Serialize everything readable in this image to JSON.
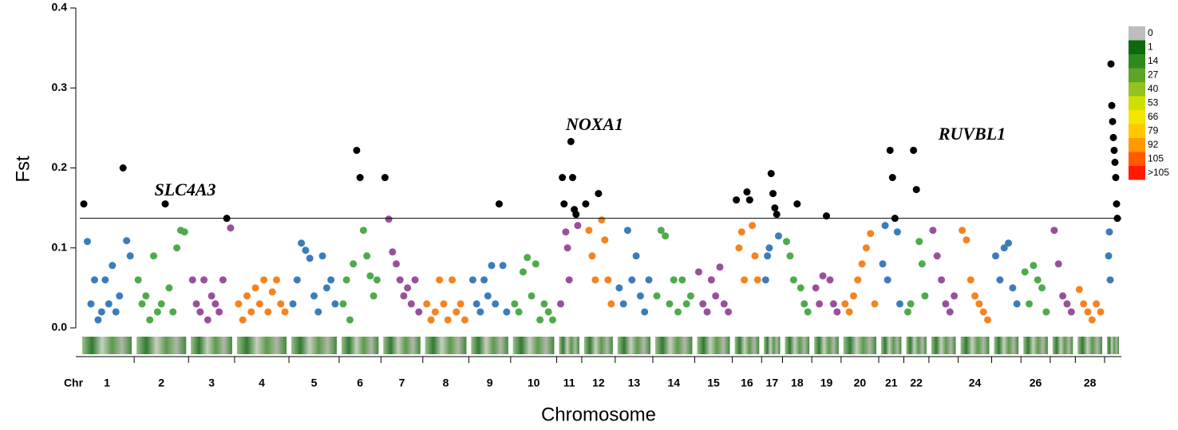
{
  "chart_data": {
    "type": "manhattan",
    "ylabel": "Fst",
    "xlabel": "Chromosome",
    "x_prefix_label": "Chr",
    "ylim": [
      0,
      0.4
    ],
    "yticks": [
      {
        "value": 0,
        "label": "0.0"
      },
      {
        "value": 0.1,
        "label": "0.1"
      },
      {
        "value": 0.2,
        "label": "0.2"
      },
      {
        "value": 0.3,
        "label": "0.3"
      },
      {
        "value": 0.4,
        "label": "0.4"
      }
    ],
    "threshold": 0.137,
    "threshold_color": "#000000",
    "colors": [
      "#3b7dbb",
      "#4dab4a",
      "#9a4f9d",
      "#f5831f"
    ],
    "annotations": [
      "SLC4A3",
      "NOXA1",
      "RUVBL1"
    ],
    "chromosomes": [
      {
        "label": "1",
        "values": [
          0.155,
          0.108,
          0.03,
          0.06,
          0.01,
          0.02,
          0.06,
          0.03,
          0.078,
          0.02,
          0.04,
          0.2,
          0.109,
          0.09
        ]
      },
      {
        "label": "2",
        "values": [
          0.06,
          0.03,
          0.04,
          0.01,
          0.09,
          0.02,
          0.03,
          0.155,
          0.05,
          0.02,
          0.1,
          0.122,
          0.12
        ]
      },
      {
        "label": "3",
        "values": [
          0.06,
          0.03,
          0.02,
          0.06,
          0.01,
          0.04,
          0.03,
          0.02,
          0.06,
          0.137,
          0.125
        ]
      },
      {
        "label": "4",
        "values": [
          0.03,
          0.01,
          0.04,
          0.02,
          0.05,
          0.03,
          0.06,
          0.02,
          0.045,
          0.06,
          0.03,
          0.02
        ]
      },
      {
        "label": "5",
        "values": [
          0.03,
          0.06,
          0.106,
          0.097,
          0.087,
          0.04,
          0.02,
          0.09,
          0.05,
          0.06,
          0.03
        ]
      },
      {
        "label": "6",
        "values": [
          0.03,
          0.06,
          0.01,
          0.08,
          0.222,
          0.188,
          0.122,
          0.09,
          0.065,
          0.04,
          0.06
        ]
      },
      {
        "label": "7",
        "values": [
          0.188,
          0.136,
          0.095,
          0.08,
          0.06,
          0.04,
          0.05,
          0.03,
          0.06,
          0.02
        ]
      },
      {
        "label": "8",
        "values": [
          0.03,
          0.01,
          0.02,
          0.06,
          0.03,
          0.01,
          0.06,
          0.02,
          0.03,
          0.01
        ]
      },
      {
        "label": "9",
        "values": [
          0.06,
          0.03,
          0.02,
          0.06,
          0.04,
          0.078,
          0.03,
          0.155,
          0.078,
          0.02
        ]
      },
      {
        "label": "10",
        "values": [
          0.03,
          0.02,
          0.07,
          0.088,
          0.04,
          0.08,
          0.01,
          0.03,
          0.02,
          0.01
        ]
      },
      {
        "label": "11",
        "values": [
          0.03,
          0.188,
          0.155,
          0.12,
          0.1,
          0.06,
          0.233,
          0.188,
          0.148,
          0.142,
          0.128
        ]
      },
      {
        "label": "12",
        "values": [
          0.155,
          0.122,
          0.09,
          0.06,
          0.168,
          0.135,
          0.11,
          0.06,
          0.03
        ]
      },
      {
        "label": "13",
        "values": [
          0.05,
          0.03,
          0.122,
          0.06,
          0.09,
          0.04,
          0.02,
          0.06
        ]
      },
      {
        "label": "14",
        "values": [
          0.04,
          0.122,
          0.115,
          0.03,
          0.06,
          0.02,
          0.06,
          0.03,
          0.04
        ]
      },
      {
        "label": "15",
        "values": [
          0.07,
          0.03,
          0.02,
          0.06,
          0.04,
          0.076,
          0.03,
          0.02
        ]
      },
      {
        "label": "16",
        "values": [
          0.16,
          0.1,
          0.12,
          0.06,
          0.17,
          0.16,
          0.128,
          0.09,
          0.06
        ]
      },
      {
        "label": "17",
        "values": [
          0.06,
          0.09,
          0.1,
          0.193,
          0.168,
          0.15,
          0.142,
          0.115
        ]
      },
      {
        "label": "18",
        "values": [
          0.108,
          0.09,
          0.06,
          0.155,
          0.05,
          0.03,
          0.02
        ]
      },
      {
        "label": "19",
        "values": [
          0.05,
          0.03,
          0.065,
          0.14,
          0.06,
          0.03,
          0.02
        ]
      },
      {
        "label": "20",
        "values": [
          0.03,
          0.02,
          0.04,
          0.06,
          0.08,
          0.1,
          0.118,
          0.03
        ]
      },
      {
        "label": "21",
        "values": [
          0.08,
          0.128,
          0.06,
          0.222,
          0.188,
          0.137,
          0.12,
          0.03
        ]
      },
      {
        "label": "22",
        "values": [
          0.02,
          0.03,
          0.222,
          0.173,
          0.108,
          0.08,
          0.04
        ]
      },
      {
        "label": null,
        "values": [
          0.122,
          0.09,
          0.06,
          0.03,
          0.02,
          0.04
        ]
      },
      {
        "label": "24",
        "values": [
          0.122,
          0.11,
          0.06,
          0.04,
          0.03,
          0.02,
          0.01
        ]
      },
      {
        "label": null,
        "values": [
          0.09,
          0.06,
          0.1,
          0.106,
          0.05,
          0.03
        ]
      },
      {
        "label": "26",
        "values": [
          0.07,
          0.03,
          0.078,
          0.06,
          0.05,
          0.02
        ]
      },
      {
        "label": null,
        "values": [
          0.122,
          0.08,
          0.04,
          0.03,
          0.02
        ]
      },
      {
        "label": "28",
        "values": [
          0.048,
          0.03,
          0.02,
          0.01,
          0.03,
          0.02
        ]
      },
      {
        "label": null,
        "values": [
          0.09,
          0.12,
          0.06,
          0.33,
          0.278,
          0.258,
          0.238,
          0.222,
          0.207,
          0.188,
          0.155,
          0.137
        ]
      }
    ],
    "density_legend": {
      "labels": [
        "0",
        "1",
        "14",
        "27",
        "40",
        "53",
        "66",
        "79",
        "92",
        "105",
        ">105"
      ],
      "colors": [
        "#bdbdbd",
        "#0b6b0b",
        "#2f8a1e",
        "#5da52a",
        "#94c21f",
        "#cfe000",
        "#f4e600",
        "#ffc800",
        "#ff9a00",
        "#ff5a00",
        "#ff1a00"
      ]
    }
  }
}
